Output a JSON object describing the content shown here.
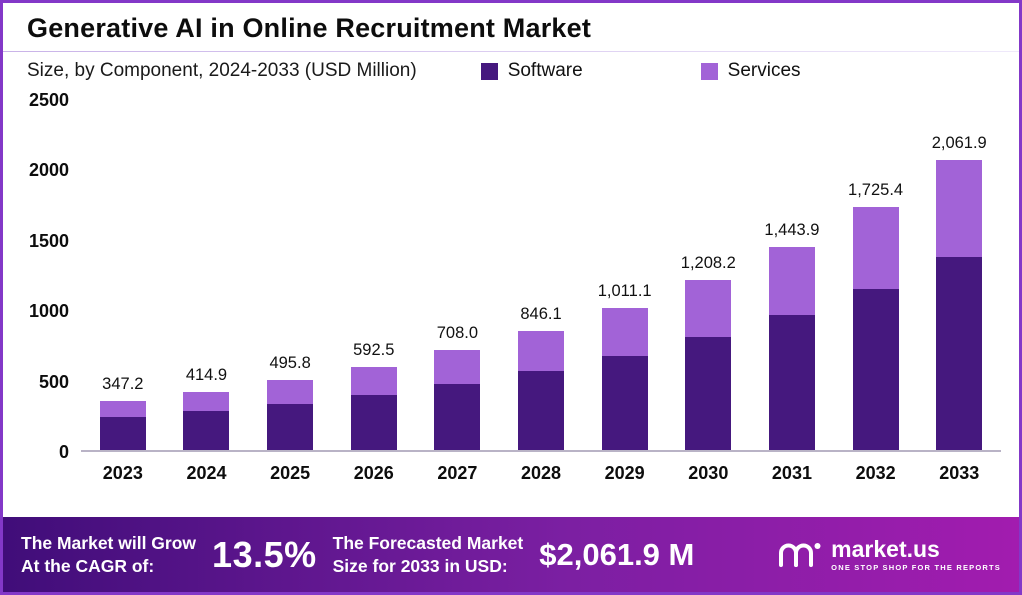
{
  "header": {
    "title": "Generative AI in Online Recruitment Market",
    "subtitle": "Size, by Component, 2024-2033 (USD Million)"
  },
  "legend": [
    {
      "label": "Software",
      "color": "#45187e"
    },
    {
      "label": "Services",
      "color": "#a263d7"
    }
  ],
  "chart_data": {
    "type": "bar",
    "stacked": true,
    "title": "Generative AI in Online Recruitment Market",
    "subtitle": "Size, by Component, 2024-2033 (USD Million)",
    "xlabel": "",
    "ylabel": "",
    "ylim": [
      0,
      2500
    ],
    "yticks": [
      "2500",
      "2000",
      "1500",
      "1000",
      "500",
      "0"
    ],
    "grid": false,
    "legend_position": "top",
    "categories": [
      "2023",
      "2024",
      "2025",
      "2026",
      "2027",
      "2028",
      "2029",
      "2030",
      "2031",
      "2032",
      "2033"
    ],
    "series": [
      {
        "name": "Software",
        "color": "#45187e",
        "values": [
          231,
          276,
          329,
          393,
          470,
          562,
          671,
          802,
          959,
          1146,
          1369
        ]
      },
      {
        "name": "Services",
        "color": "#a263d7",
        "values": [
          116.2,
          138.9,
          166.8,
          199.5,
          238.0,
          284.1,
          340.1,
          406.2,
          484.9,
          579.4,
          692.9
        ]
      }
    ],
    "totals": [
      "347.2",
      "414.9",
      "495.8",
      "592.5",
      "708.0",
      "846.1",
      "1,011.1",
      "1,208.2",
      "1,443.9",
      "1,725.4",
      "2,061.9"
    ]
  },
  "footer": {
    "cagr_label_line1": "The Market will Grow",
    "cagr_label_line2": "At the CAGR of:",
    "cagr_value": "13.5%",
    "forecast_label_line1": "The Forecasted Market",
    "forecast_label_line2": "Size for 2033 in USD:",
    "forecast_value": "$2,061.9 M",
    "brand_name": "market.us",
    "brand_tagline": "ONE STOP SHOP FOR THE REPORTS"
  },
  "colors": {
    "software": "#45187e",
    "services": "#a263d7",
    "border": "#8338c8",
    "banner_gradient_start": "#400d79",
    "banner_gradient_end": "#a21caf",
    "axis_line": "#b9b3c6"
  }
}
